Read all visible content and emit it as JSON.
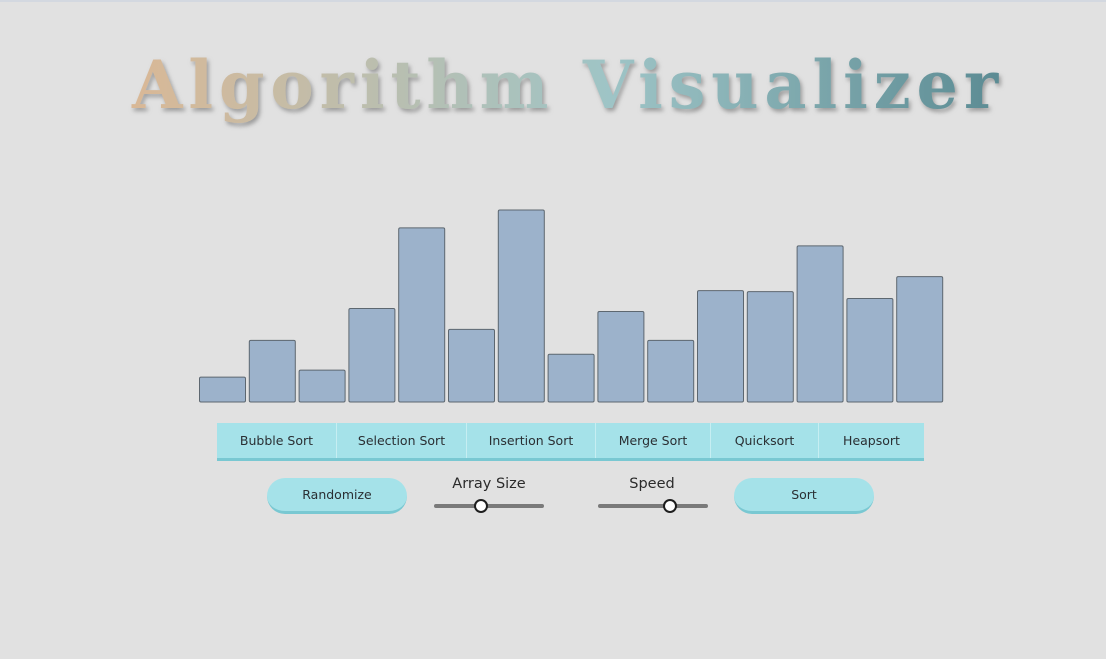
{
  "header": {
    "title": "Algorithm Visualizer",
    "gradient": [
      "#d9b896",
      "#9ec4c6",
      "#5b8b93"
    ]
  },
  "visualizer": {
    "bar_fill": "#9cb2cb",
    "bar_stroke": "#5d6770",
    "values": [
      25,
      62,
      32,
      94,
      175,
      73,
      193,
      48,
      91,
      62,
      112,
      111,
      157,
      104,
      126
    ],
    "max_value": 193
  },
  "algorithms": {
    "buttons": [
      {
        "label": "Bubble Sort"
      },
      {
        "label": "Selection Sort"
      },
      {
        "label": "Insertion Sort"
      },
      {
        "label": "Merge Sort"
      },
      {
        "label": "Quicksort"
      },
      {
        "label": "Heapsort"
      }
    ]
  },
  "controls": {
    "randomize_label": "Randomize",
    "sort_label": "Sort",
    "array_size": {
      "label": "Array Size",
      "value": 0.43
    },
    "speed": {
      "label": "Speed",
      "value": 0.65
    }
  }
}
